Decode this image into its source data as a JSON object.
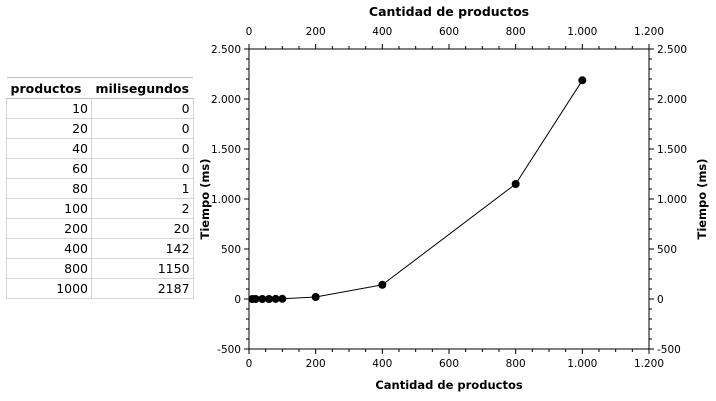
{
  "table": {
    "headers": [
      "productos",
      "milisegundos"
    ],
    "rows": [
      [
        "10",
        "0"
      ],
      [
        "20",
        "0"
      ],
      [
        "40",
        "0"
      ],
      [
        "60",
        "0"
      ],
      [
        "80",
        "1"
      ],
      [
        "100",
        "2"
      ],
      [
        "200",
        "20"
      ],
      [
        "400",
        "142"
      ],
      [
        "800",
        "1150"
      ],
      [
        "1000",
        "2187"
      ]
    ]
  },
  "chart_data": {
    "type": "line",
    "x": [
      10,
      20,
      40,
      60,
      80,
      100,
      200,
      400,
      800,
      1000
    ],
    "y": [
      0,
      0,
      0,
      0,
      1,
      2,
      20,
      142,
      1150,
      2187
    ],
    "xlabel": "Cantidad de productos",
    "xlabel_top": "Cantidad de productos",
    "ylabel": "Tiempo (ms)",
    "ylabel_right": "Tiempo (ms)",
    "xlim": [
      0,
      1200
    ],
    "ylim": [
      -500,
      2500
    ],
    "x_ticks": [
      0,
      200,
      400,
      600,
      800,
      1000,
      1200
    ],
    "x_tick_labels": [
      "0",
      "200",
      "400",
      "600",
      "800",
      "1.000",
      "1.200"
    ],
    "y_ticks": [
      -500,
      0,
      500,
      1000,
      1500,
      2000,
      2500
    ],
    "y_tick_labels": [
      "-500",
      "0",
      "500",
      "1.000",
      "1.500",
      "2.000",
      "2.500"
    ],
    "grid": false,
    "marker": "circle",
    "line_color": "#000000",
    "marker_color": "#000000"
  }
}
